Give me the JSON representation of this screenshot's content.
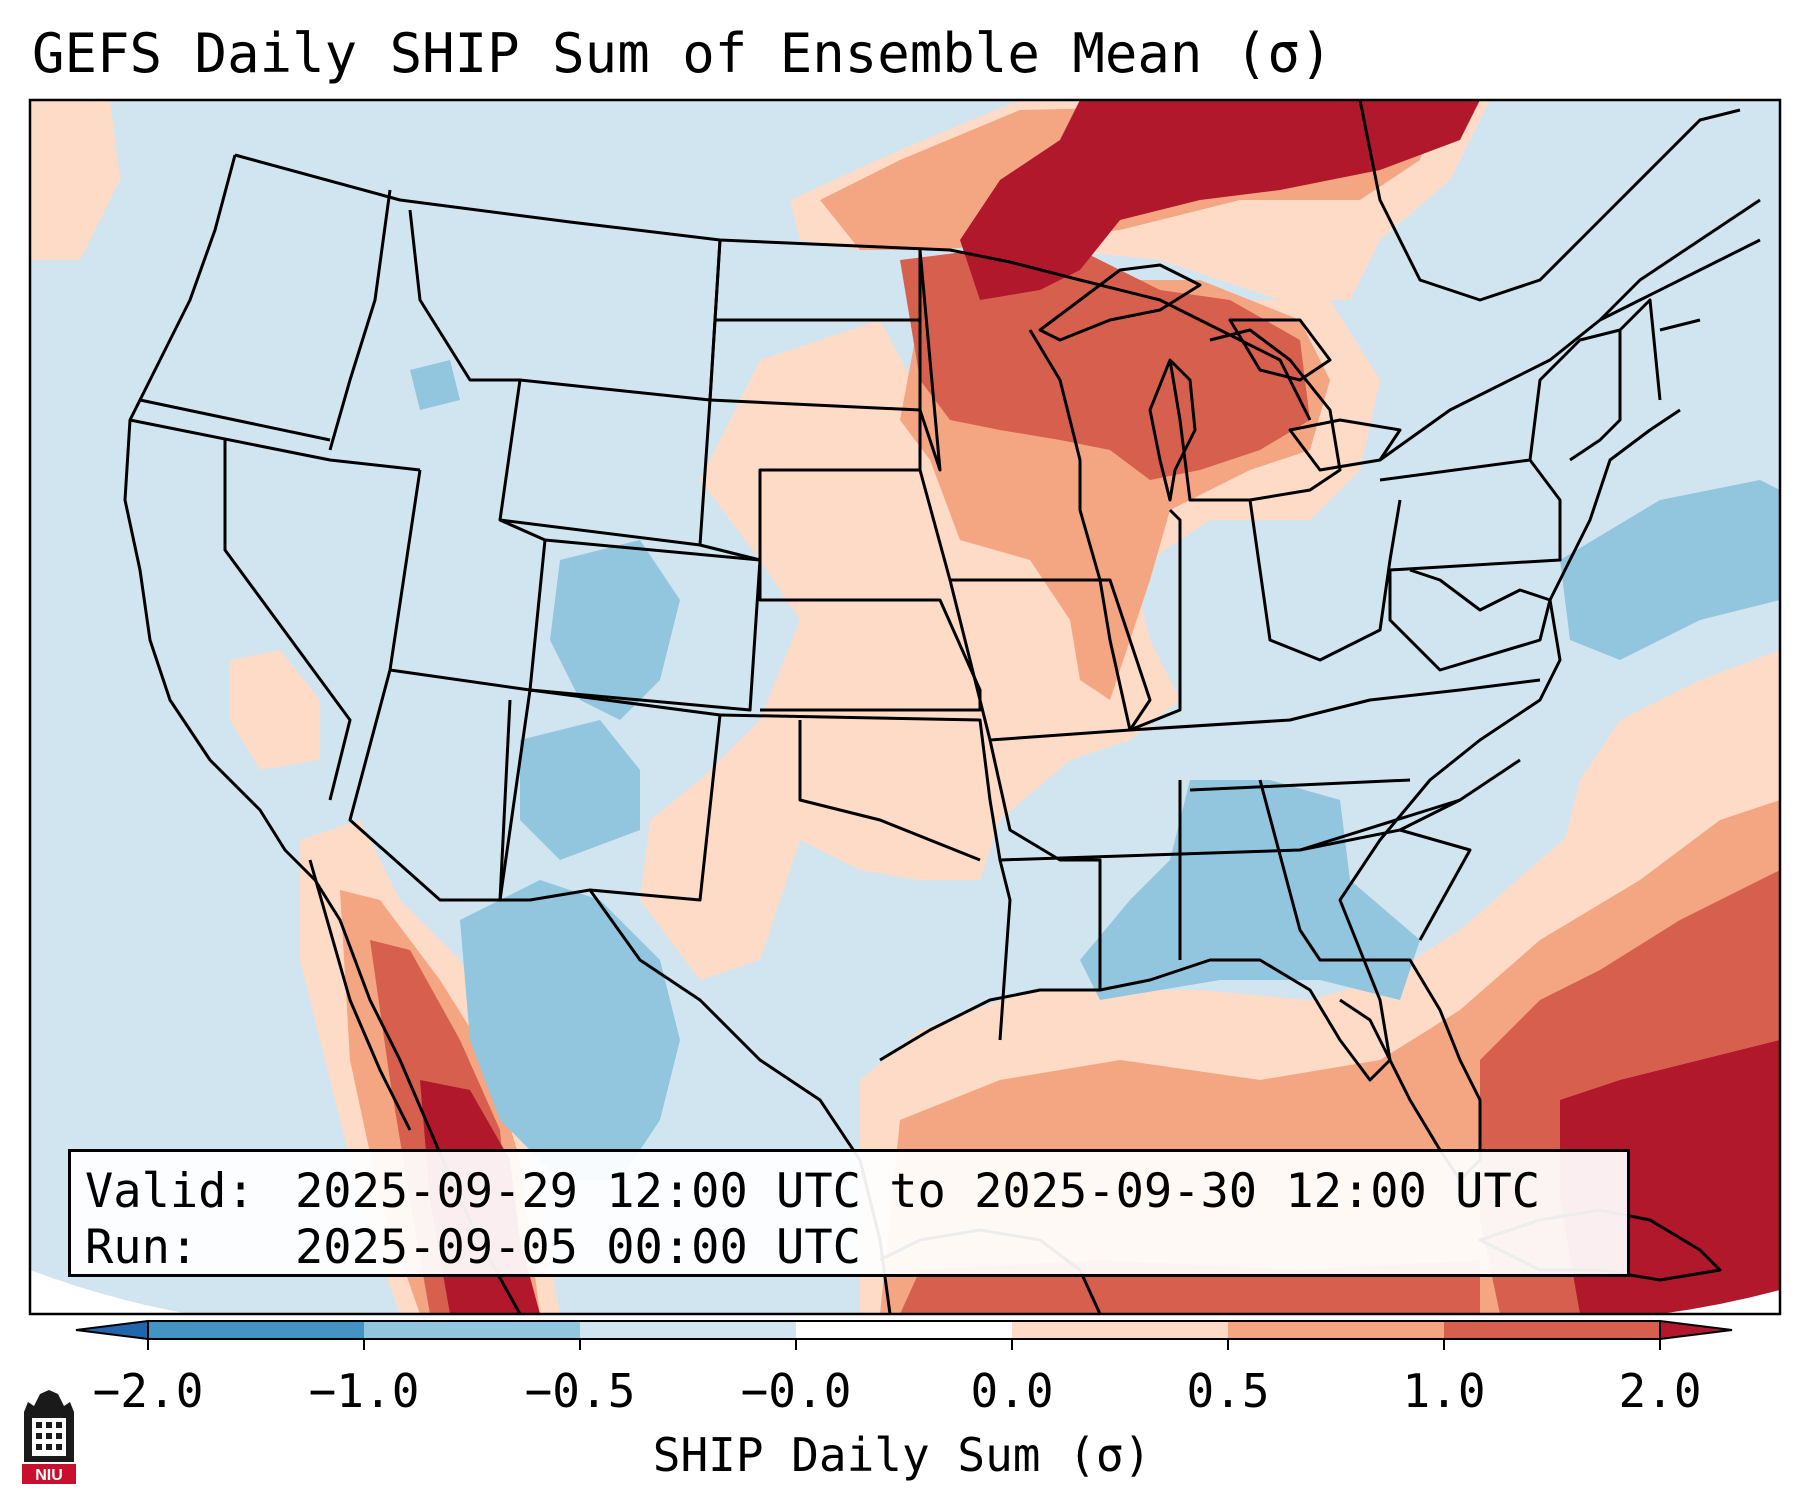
{
  "figure": {
    "title": "GEFS Daily SHIP Sum of Ensemble Mean (σ)",
    "valid_label": "Valid:",
    "valid_value": "2025-09-29 12:00 UTC to 2025-09-30 12:00 UTC",
    "run_label": "Run:",
    "run_value": "2025-09-05 00:00 UTC"
  },
  "colorbar": {
    "label": "SHIP Daily Sum (σ)",
    "ticks": [
      "−2.0",
      "−1.0",
      "−0.5",
      "−0.0",
      "0.0",
      "0.5",
      "1.0",
      "2.0"
    ],
    "colors": [
      "#4393c3",
      "#92c5de",
      "#d1e5f0",
      "#fddbc7",
      "#f4a582",
      "#d6604d",
      "#b2182b"
    ],
    "under_color": "#2166ac",
    "over_color": "#67001f"
  },
  "logo": {
    "text": "NIU",
    "color": "#c8102e"
  }
}
